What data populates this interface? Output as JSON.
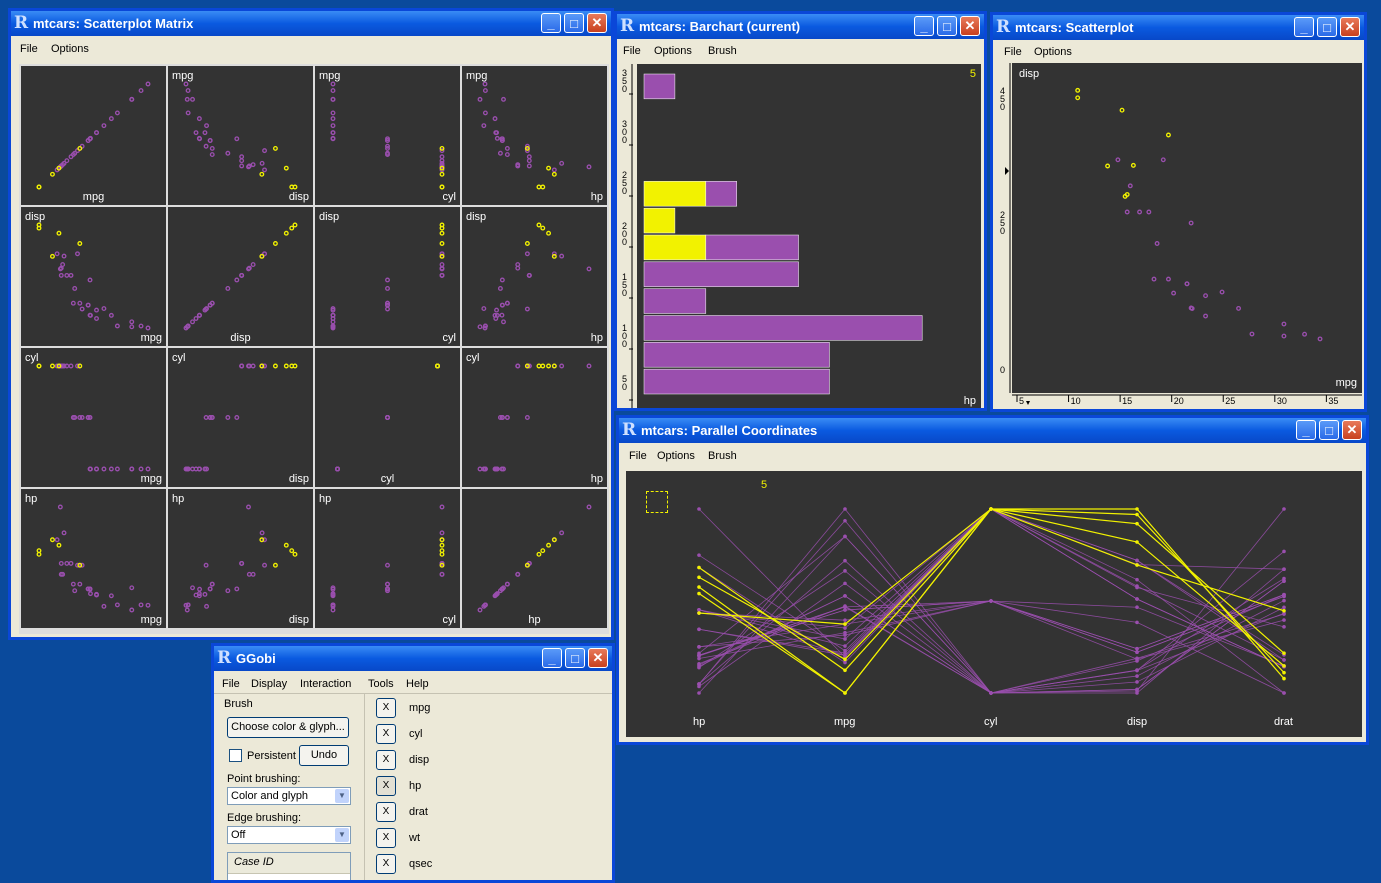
{
  "colors": {
    "point": "#9a4fae",
    "brushed": "#f2f200",
    "plot_bg": "#333333"
  },
  "windows": {
    "matrix": {
      "title": "mtcars: Scatterplot Matrix",
      "menu": [
        "File",
        "Options"
      ],
      "labels": {
        "r0c0": "mpg",
        "r0c1a": "mpg",
        "r0c1b": "disp",
        "r0c2a": "mpg",
        "r0c2b": "cyl",
        "r0c3a": "mpg",
        "r0c3b": "hp",
        "r1c0a": "disp",
        "r1c0b": "mpg",
        "r1c1": "disp",
        "r1c2a": "disp",
        "r1c2b": "cyl",
        "r1c3a": "disp",
        "r1c3b": "hp",
        "r2c0a": "cyl",
        "r2c0b": "mpg",
        "r2c1a": "cyl",
        "r2c1b": "disp",
        "r2c2": "cyl",
        "r2c3a": "cyl",
        "r2c3b": "hp",
        "r3c0a": "hp",
        "r3c0b": "mpg",
        "r3c1a": "hp",
        "r3c1b": "disp",
        "r3c2a": "hp",
        "r3c2b": "cyl",
        "r3c3": "hp"
      }
    },
    "barchart": {
      "title": "mtcars: Barchart (current)",
      "menu": [
        "File",
        "Options",
        "Brush"
      ],
      "count": "5",
      "axis_label": "hp",
      "y_ticks": [
        "3\n5\n0",
        "3\n0\n0",
        "2\n5\n0",
        "2\n0\n0",
        "1\n5\n0",
        "1\n0\n0",
        "5\n0"
      ]
    },
    "scatter": {
      "title": "mtcars: Scatterplot",
      "menu": [
        "File",
        "Options"
      ],
      "ylabel": "disp",
      "xlabel": "mpg",
      "y_ticks": [
        "4\n5\n0",
        "2\n5\n0",
        "0"
      ],
      "x_ticks": [
        "5",
        "10",
        "15",
        "20",
        "25",
        "30",
        "35"
      ]
    },
    "parallel": {
      "title": "mtcars: Parallel Coordinates",
      "menu": [
        "File",
        "Options",
        "Brush"
      ],
      "count": "5",
      "axes": [
        "hp",
        "mpg",
        "cyl",
        "disp",
        "drat"
      ]
    },
    "ggobi": {
      "title": "GGobi",
      "menu": [
        "File",
        "Display",
        "Interaction",
        "Tools",
        "Help"
      ],
      "brush_label": "Brush",
      "choose_button": "Choose color & glyph...",
      "persistent_label": "Persistent",
      "undo_button": "Undo",
      "point_brushing_label": "Point brushing:",
      "point_brushing_value": "Color and glyph",
      "edge_brushing_label": "Edge brushing:",
      "edge_brushing_value": "Off",
      "case_id_label": "Case ID",
      "variables": [
        {
          "mark": "X",
          "name": "mpg"
        },
        {
          "mark": "X",
          "name": "cyl"
        },
        {
          "mark": "X",
          "name": "disp"
        },
        {
          "mark": "X",
          "name": "hp"
        },
        {
          "mark": "X",
          "name": "drat"
        },
        {
          "mark": "X",
          "name": "wt"
        },
        {
          "mark": "X",
          "name": "qsec"
        }
      ]
    }
  },
  "chart_data": [
    {
      "type": "scatter",
      "title": "mtcars: Scatterplot",
      "xlabel": "mpg",
      "ylabel": "disp",
      "xlim": [
        5,
        37
      ],
      "ylim": [
        0,
        500
      ],
      "series": [
        {
          "values": [
            [
              21,
              160
            ],
            [
              21,
              160
            ],
            [
              22.8,
              108
            ],
            [
              21.4,
              258
            ],
            [
              18.7,
              360
            ],
            [
              18.1,
              225
            ],
            [
              14.3,
              360
            ],
            [
              24.4,
              146.7
            ],
            [
              22.8,
              140.8
            ],
            [
              19.2,
              167.6
            ],
            [
              17.8,
              167.6
            ],
            [
              16.4,
              275.8
            ],
            [
              17.3,
              275.8
            ],
            [
              15.2,
              275.8
            ],
            [
              32.4,
              78.7
            ],
            [
              30.4,
              75.7
            ],
            [
              33.9,
              71.1
            ],
            [
              21.5,
              120.1
            ],
            [
              15.5,
              318
            ],
            [
              27.3,
              79
            ],
            [
              26,
              120.3
            ],
            [
              30.4,
              95.1
            ],
            [
              19.7,
              145
            ],
            [
              21.4,
              121
            ]
          ]
        },
        {
          "values": [
            [
              10.4,
              472
            ],
            [
              10.4,
              460
            ],
            [
              14.7,
              440
            ],
            [
              13.3,
              350
            ],
            [
              15.2,
              304
            ],
            [
              15.8,
              351
            ],
            [
              15,
              301
            ],
            [
              19.2,
              400
            ]
          ]
        }
      ]
    },
    {
      "type": "bar",
      "title": "mtcars: Barchart (current)",
      "xlabel": "hp",
      "categories": [
        "50-75",
        "75-100",
        "100-125",
        "125-150",
        "150-175",
        "175-200",
        "200-225",
        "225-250",
        "250-275",
        "275-300",
        "300-325",
        "325-350"
      ],
      "series": [
        {
          "name": "unbrushed",
          "values": [
            6,
            6,
            9,
            2,
            5,
            3,
            0,
            1,
            0,
            0,
            0,
            1
          ]
        },
        {
          "name": "brushed",
          "values": [
            0,
            0,
            0,
            0,
            0,
            2,
            1,
            2,
            0,
            0,
            0,
            0
          ]
        }
      ]
    },
    {
      "type": "line",
      "title": "mtcars: Parallel Coordinates",
      "categories": [
        "hp",
        "mpg",
        "cyl",
        "disp",
        "drat"
      ],
      "note_count": "5"
    }
  ]
}
